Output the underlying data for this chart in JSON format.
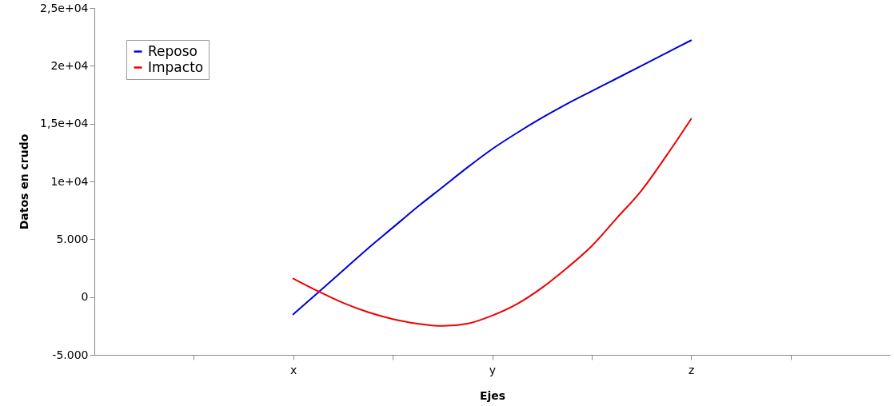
{
  "chart_data": {
    "type": "line",
    "xlabel": "Ejes",
    "ylabel": "Datos en crudo",
    "categories": [
      null,
      null,
      null,
      null,
      null,
      null,
      null,
      null,
      "x",
      null,
      null,
      null,
      null,
      null,
      null,
      null,
      "y",
      null,
      null,
      null,
      null,
      null,
      null,
      null,
      "z",
      null,
      null,
      null,
      null,
      null,
      null,
      null,
      null
    ],
    "ylim": [
      -5000,
      25000
    ],
    "yticks": [
      {
        "value": -5000,
        "label": "-5.000"
      },
      {
        "value": 0,
        "label": "0"
      },
      {
        "value": 5000,
        "label": "5.000"
      },
      {
        "value": 10000,
        "label": "1e+04"
      },
      {
        "value": 15000,
        "label": "1,5e+04"
      },
      {
        "value": 20000,
        "label": "2e+04"
      },
      {
        "value": 25000,
        "label": "2,5e+04"
      }
    ],
    "grid": false,
    "legend": "top left",
    "marker": "none",
    "line_style": "solid",
    "series": [
      {
        "name": "Reposo",
        "color": "#0000dd",
        "values": [
          null,
          null,
          null,
          null,
          null,
          null,
          null,
          null,
          -1500,
          400,
          2300,
          4200,
          6000,
          7800,
          9500,
          11200,
          12800,
          14200,
          15500,
          16700,
          17800,
          18900,
          20000,
          21100,
          22200,
          null,
          null,
          null,
          null,
          null,
          null,
          null,
          null
        ]
      },
      {
        "name": "Impacto",
        "color": "#ee0000",
        "values": [
          null,
          null,
          null,
          null,
          null,
          null,
          null,
          null,
          1600,
          500,
          -500,
          -1300,
          -1900,
          -2300,
          -2500,
          -2300,
          -1600,
          -600,
          800,
          2500,
          4400,
          6800,
          9200,
          12200,
          15400,
          null,
          null,
          null,
          null,
          null,
          null,
          null,
          null
        ]
      }
    ]
  }
}
